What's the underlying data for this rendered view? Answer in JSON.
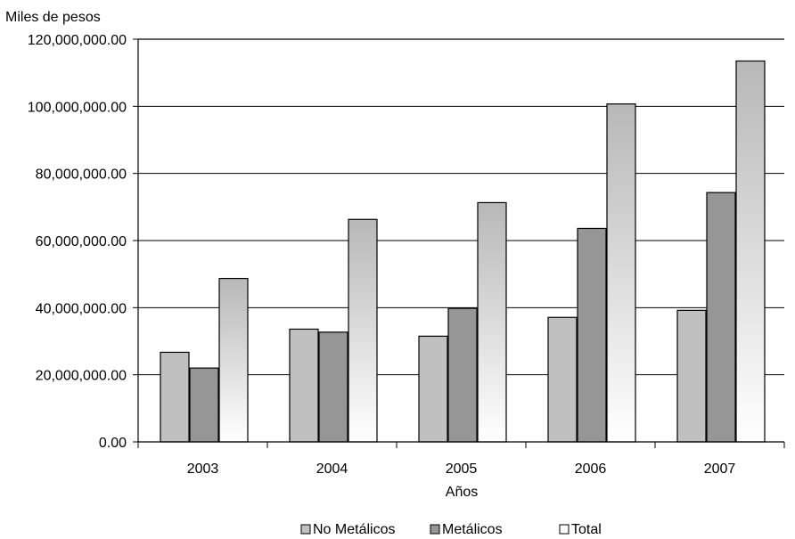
{
  "chart_data": {
    "type": "bar",
    "ylabel": "Miles de pesos",
    "xlabel": "Años",
    "categories": [
      "2003",
      "2004",
      "2005",
      "2006",
      "2007"
    ],
    "ylim": [
      0,
      120000000
    ],
    "yticks": [
      "0.00",
      "20,000,000.00",
      "40,000,000.00",
      "60,000,000.00",
      "80,000,000.00",
      "100,000,000.00",
      "120,000,000.00"
    ],
    "grid": true,
    "legend_position": "bottom",
    "series": [
      {
        "name": "No Metálicos",
        "values": [
          26700000,
          33600000,
          31500000,
          37100000,
          39200000
        ],
        "color": "#c0c0c0"
      },
      {
        "name": "Metálicos",
        "values": [
          22000000,
          32700000,
          39800000,
          63600000,
          74300000
        ],
        "color": "#969696"
      },
      {
        "name": "Total",
        "values": [
          48700000,
          66300000,
          71300000,
          100700000,
          113500000
        ],
        "color": "#ffffff"
      }
    ]
  }
}
